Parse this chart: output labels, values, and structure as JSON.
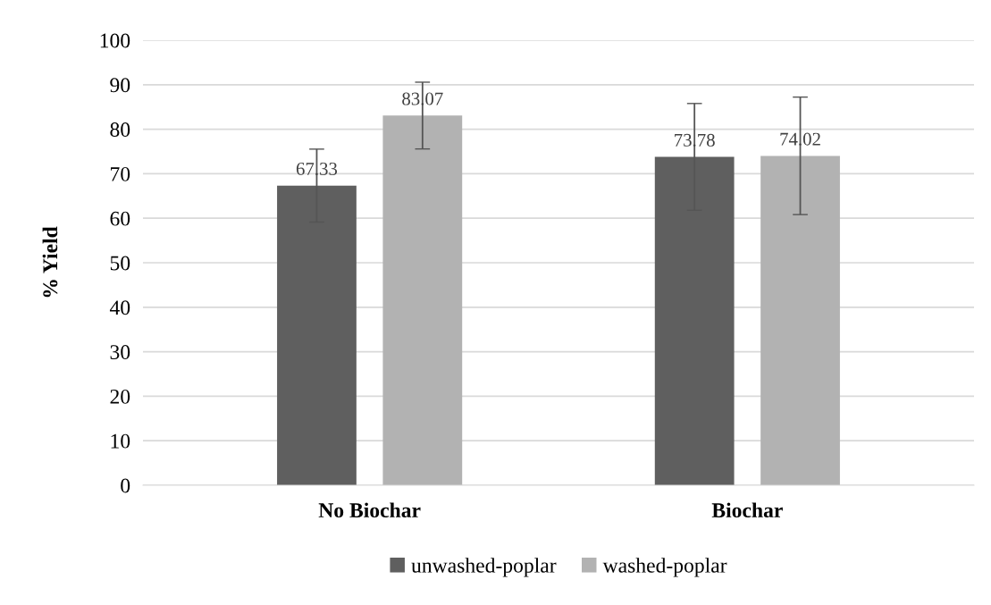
{
  "chart_data": {
    "type": "bar",
    "ylabel": "% Yield",
    "categories": [
      "No Biochar",
      "Biochar"
    ],
    "series": [
      {
        "name": "unwashed-poplar",
        "color": "#5f5f5f",
        "values": [
          67.33,
          73.78
        ],
        "errors": [
          8.2,
          12.0
        ]
      },
      {
        "name": "washed-poplar",
        "color": "#b2b2b2",
        "values": [
          83.07,
          74.02
        ],
        "errors": [
          7.5,
          13.2
        ]
      }
    ],
    "ylim": [
      0,
      100
    ],
    "yticks": [
      0,
      10,
      20,
      30,
      40,
      50,
      60,
      70,
      80,
      90,
      100
    ],
    "grid": "y",
    "legend": "bottom",
    "data_labels": true
  }
}
